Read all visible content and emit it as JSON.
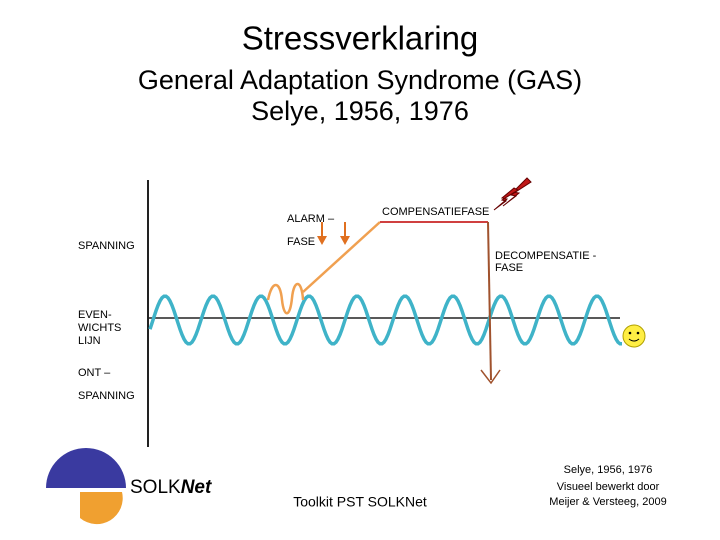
{
  "header": {
    "title": "Stressverklaring",
    "subtitle": [
      "General Adaptation Syndrome (GAS)",
      "Selye, 1956, 1976"
    ]
  },
  "diagram": {
    "labels": {
      "alarm": [
        "ALARM –",
        "FASE"
      ],
      "compensation": "COMPENSATIEFASE",
      "tension": "SPANNING",
      "decompensation": [
        "DECOMPENSATIE -",
        "FASE"
      ],
      "balance": [
        "EVEN-",
        "WICHTS",
        "LIJN"
      ],
      "relaxation": [
        "ONT –",
        "SPANNING"
      ]
    }
  },
  "footer": {
    "logo": [
      "SOLK",
      "Net"
    ],
    "center": "Toolkit PST SOLKNet",
    "credits": [
      "Selye, 1956, 1976",
      "Visueel bewerkt door",
      "Meijer & Versteeg, 2009"
    ]
  }
}
